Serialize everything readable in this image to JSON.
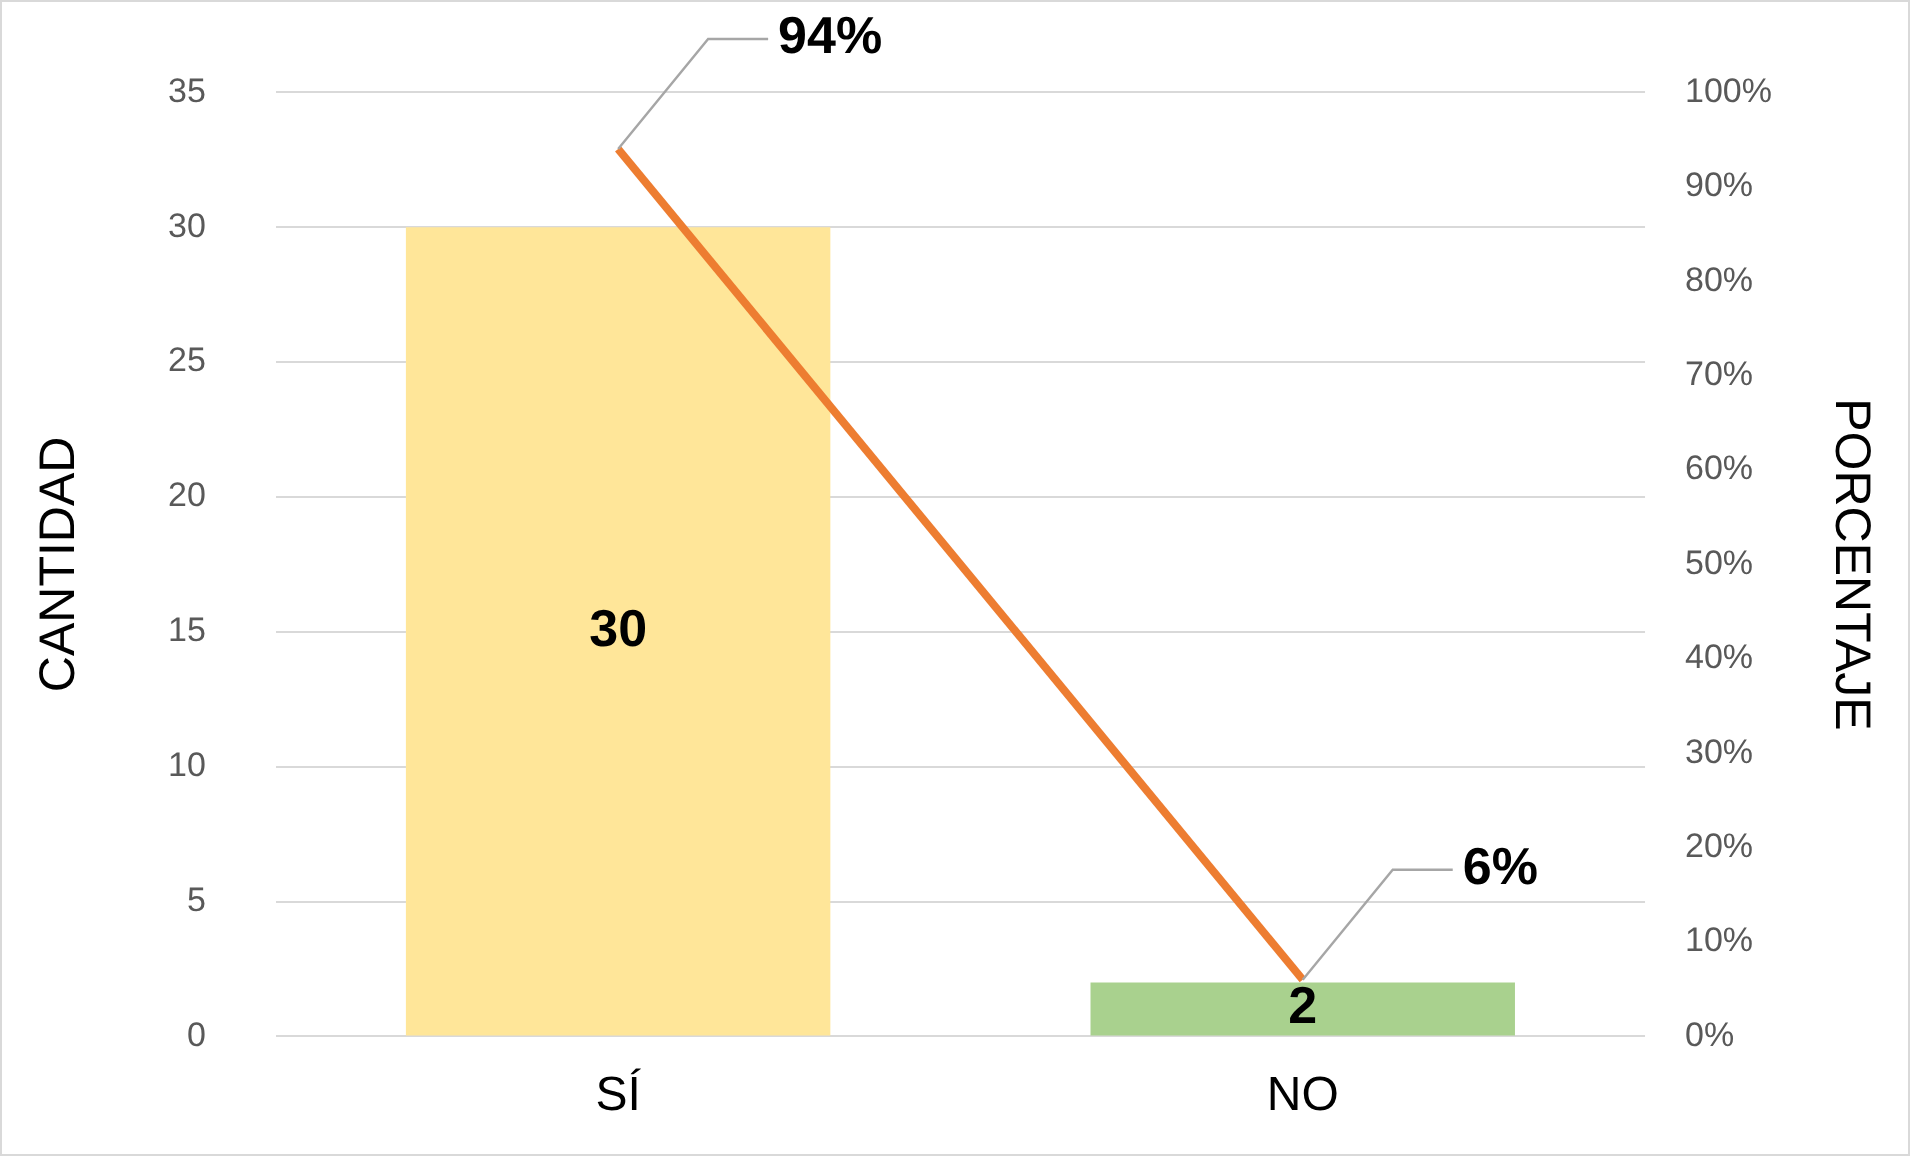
{
  "chart_data": {
    "type": "bar",
    "ylabel": "CANTIDAD",
    "y2label": "PORCENTAJE",
    "categories": [
      "SÍ",
      "NO"
    ],
    "series": [
      {
        "colors": [
          "#ffe699",
          "#a9d18e"
        ],
        "values": [
          30,
          2
        ],
        "value_labels": [
          "30",
          "2"
        ]
      },
      {
        "type": "line",
        "axis": "y2",
        "color": "#ed7d31",
        "values": [
          94,
          6
        ],
        "value_labels": [
          "94%",
          "6%"
        ]
      }
    ],
    "ylim": [
      0,
      35
    ],
    "yticks": [
      0,
      5,
      10,
      15,
      20,
      25,
      30,
      35
    ],
    "y2lim": [
      0,
      100
    ],
    "y2ticks": [
      {
        "value": 0,
        "label": "0%"
      },
      {
        "value": 10,
        "label": "10%"
      },
      {
        "value": 20,
        "label": "20%"
      },
      {
        "value": 30,
        "label": "30%"
      },
      {
        "value": 40,
        "label": "40%"
      },
      {
        "value": 50,
        "label": "50%"
      },
      {
        "value": 60,
        "label": "60%"
      },
      {
        "value": 70,
        "label": "70%"
      },
      {
        "value": 80,
        "label": "80%"
      },
      {
        "value": 90,
        "label": "90%"
      },
      {
        "value": 100,
        "label": "100%"
      }
    ],
    "grid": "y",
    "legend": false,
    "marker": "none"
  }
}
